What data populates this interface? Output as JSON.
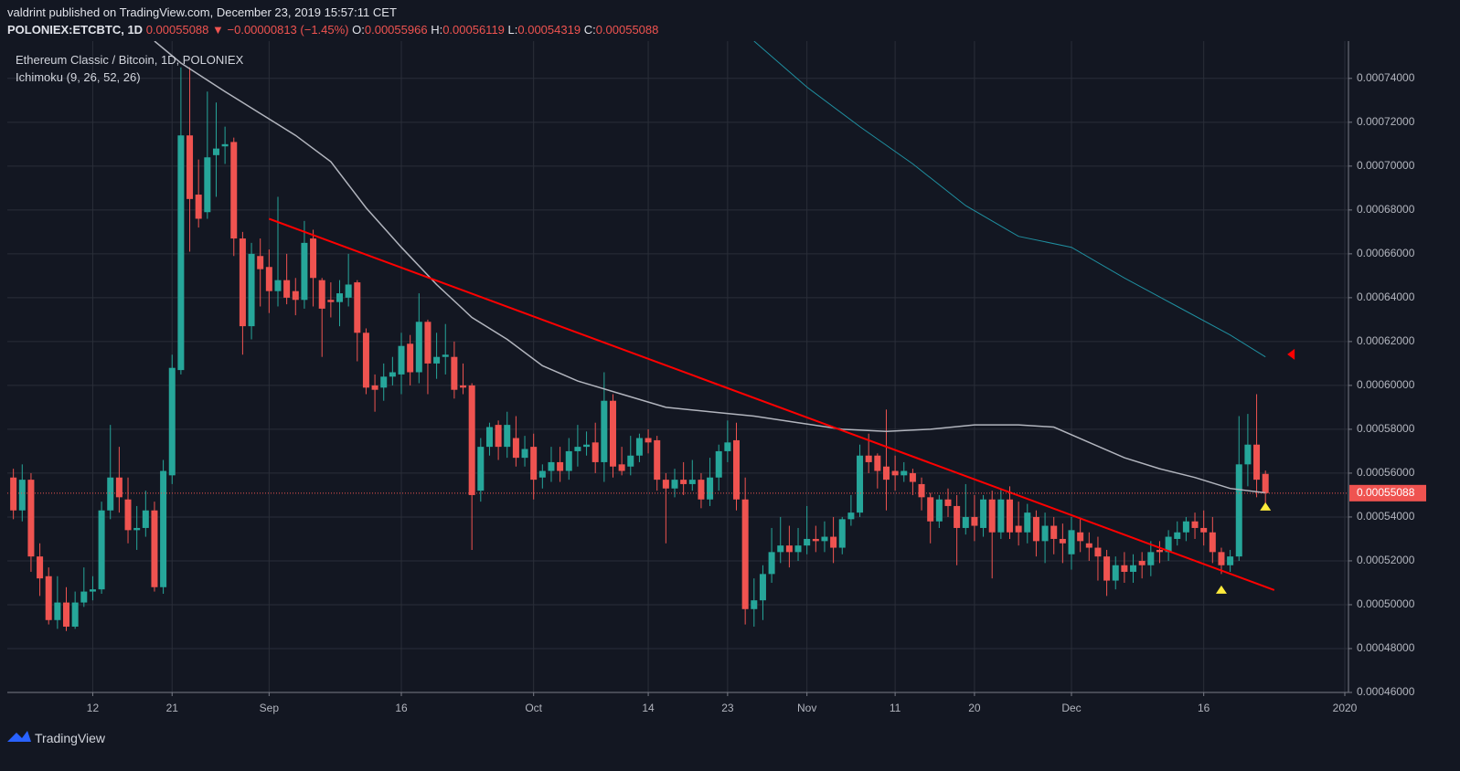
{
  "header": {
    "author_line": "valdrint published on TradingView.com, December 23, 2019 15:57:11 CET",
    "symbol": "POLONIEX:ETCBTC, 1D",
    "direction": "▼",
    "change": "−0.00000813 (−1.45%)",
    "labels": [
      "O:",
      "H:",
      "L:",
      "C:"
    ]
  },
  "chart_data": {
    "type": "candlestick",
    "title": "Ethereum Classic / Bitcoin, 1D, POLONIEX",
    "subtitle": "Ichimoku (9, 26, 52, 26)",
    "up_color": "#26a69a",
    "down_color": "#ef5350",
    "grid": true,
    "price_line": true,
    "x": [
      "2019-08-03",
      "2019-08-04",
      "2019-08-05",
      "2019-08-06",
      "2019-08-07",
      "2019-08-08",
      "2019-08-09",
      "2019-08-10",
      "2019-08-11",
      "2019-08-12",
      "2019-08-13",
      "2019-08-14",
      "2019-08-15",
      "2019-08-16",
      "2019-08-17",
      "2019-08-18",
      "2019-08-19",
      "2019-08-20",
      "2019-08-21",
      "2019-08-22",
      "2019-08-23",
      "2019-08-24",
      "2019-08-25",
      "2019-08-26",
      "2019-08-27",
      "2019-08-28",
      "2019-08-29",
      "2019-08-30",
      "2019-08-31",
      "2019-09-01",
      "2019-09-02",
      "2019-09-03",
      "2019-09-04",
      "2019-09-05",
      "2019-09-06",
      "2019-09-07",
      "2019-09-08",
      "2019-09-09",
      "2019-09-10",
      "2019-09-11",
      "2019-09-12",
      "2019-09-13",
      "2019-09-14",
      "2019-09-15",
      "2019-09-16",
      "2019-09-17",
      "2019-09-18",
      "2019-09-19",
      "2019-09-20",
      "2019-09-21",
      "2019-09-22",
      "2019-09-23",
      "2019-09-24",
      "2019-09-25",
      "2019-09-26",
      "2019-09-27",
      "2019-09-28",
      "2019-09-29",
      "2019-09-30",
      "2019-10-01",
      "2019-10-02",
      "2019-10-03",
      "2019-10-04",
      "2019-10-05",
      "2019-10-06",
      "2019-10-07",
      "2019-10-08",
      "2019-10-09",
      "2019-10-10",
      "2019-10-11",
      "2019-10-12",
      "2019-10-13",
      "2019-10-14",
      "2019-10-15",
      "2019-10-16",
      "2019-10-17",
      "2019-10-18",
      "2019-10-19",
      "2019-10-20",
      "2019-10-21",
      "2019-10-22",
      "2019-10-23",
      "2019-10-24",
      "2019-10-25",
      "2019-10-26",
      "2019-10-27",
      "2019-10-28",
      "2019-10-29",
      "2019-10-30",
      "2019-10-31",
      "2019-11-01",
      "2019-11-02",
      "2019-11-03",
      "2019-11-04",
      "2019-11-05",
      "2019-11-06",
      "2019-11-07",
      "2019-11-08",
      "2019-11-09",
      "2019-11-10",
      "2019-11-11",
      "2019-11-12",
      "2019-11-13",
      "2019-11-14",
      "2019-11-15",
      "2019-11-16",
      "2019-11-17",
      "2019-11-18",
      "2019-11-19",
      "2019-11-20",
      "2019-11-21",
      "2019-11-22",
      "2019-11-23",
      "2019-11-24",
      "2019-11-25",
      "2019-11-26",
      "2019-11-27",
      "2019-11-28",
      "2019-11-29",
      "2019-11-30",
      "2019-12-01",
      "2019-12-02",
      "2019-12-03",
      "2019-12-04",
      "2019-12-05",
      "2019-12-06",
      "2019-12-07",
      "2019-12-08",
      "2019-12-09",
      "2019-12-10",
      "2019-12-11",
      "2019-12-12",
      "2019-12-13",
      "2019-12-14",
      "2019-12-15",
      "2019-12-16",
      "2019-12-17",
      "2019-12-18",
      "2019-12-19",
      "2019-12-20",
      "2019-12-21",
      "2019-12-22",
      "2019-12-23"
    ],
    "open": [
      0.000558,
      0.000543,
      0.000557,
      0.000522,
      0.000513,
      0.000493,
      0.000501,
      0.00049,
      0.000501,
      0.000506,
      0.000507,
      0.000543,
      0.000558,
      0.000548,
      0.000534,
      0.000535,
      0.000543,
      0.000508,
      0.000559,
      0.000607,
      0.000714,
      0.000687,
      0.000679,
      0.000705,
      0.000709,
      0.000711,
      0.000667,
      0.000627,
      0.000659,
      0.000654,
      0.000643,
      0.000648,
      0.000643,
      0.000639,
      0.000667,
      0.000648,
      0.000639,
      0.000638,
      0.00064,
      0.000647,
      0.000624,
      0.0006,
      0.000599,
      0.000604,
      0.000605,
      0.000619,
      0.000606,
      0.000629,
      0.00061,
      0.000613,
      0.000613,
      0.0006,
      0.0006,
      0.000552,
      0.000572,
      0.000582,
      0.000572,
      0.000576,
      0.000567,
      0.000572,
      0.000558,
      0.000561,
      0.000565,
      0.000561,
      0.00057,
      0.000572,
      0.000574,
      0.000565,
      0.000593,
      0.000564,
      0.000563,
      0.000568,
      0.000576,
      0.000575,
      0.000557,
      0.000553,
      0.000557,
      0.000555,
      0.000557,
      0.000548,
      0.000558,
      0.00057,
      0.000575,
      0.000548,
      0.000498,
      0.000502,
      0.000514,
      0.000524,
      0.000527,
      0.000524,
      0.000527,
      0.00053,
      0.000529,
      0.000531,
      0.000526,
      0.000539,
      0.000542,
      0.000568,
      0.000568,
      0.000563,
      0.000561,
      0.000559,
      0.00056,
      0.000555,
      0.000549,
      0.000538,
      0.000548,
      0.000545,
      0.000535,
      0.00054,
      0.000535,
      0.000548,
      0.000533,
      0.000548,
      0.000536,
      0.000533,
      0.00054,
      0.000529,
      0.000536,
      0.00053,
      0.000523,
      0.000533,
      0.000528,
      0.000526,
      0.000522,
      0.000511,
      0.000518,
      0.000515,
      0.00052,
      0.000518,
      0.000525,
      0.000524,
      0.00053,
      0.000533,
      0.000538,
      0.000535,
      0.000533,
      0.000524,
      0.000518,
      0.000522,
      0.000564,
      0.000573,
      0.00055966
    ],
    "high": [
      0.000562,
      0.000564,
      0.00056,
      0.000528,
      0.000517,
      0.000513,
      0.000508,
      0.000506,
      0.000517,
      0.000513,
      0.000547,
      0.000582,
      0.000572,
      0.000558,
      0.000545,
      0.000552,
      0.000547,
      0.000566,
      0.000614,
      0.000745,
      0.000745,
      0.000703,
      0.000734,
      0.000729,
      0.000718,
      0.000713,
      0.00067,
      0.000665,
      0.000667,
      0.000662,
      0.000686,
      0.00066,
      0.000649,
      0.000675,
      0.000671,
      0.000649,
      0.000647,
      0.000648,
      0.00066,
      0.000648,
      0.000626,
      0.000605,
      0.00061,
      0.000613,
      0.000624,
      0.000623,
      0.000642,
      0.00063,
      0.000624,
      0.000628,
      0.00062,
      0.00061,
      0.000601,
      0.000576,
      0.000583,
      0.000584,
      0.000588,
      0.000586,
      0.000577,
      0.000578,
      0.000564,
      0.000572,
      0.000572,
      0.000576,
      0.000582,
      0.000579,
      0.000583,
      0.000606,
      0.000596,
      0.000572,
      0.000577,
      0.000578,
      0.00058,
      0.000577,
      0.00056,
      0.000562,
      0.000565,
      0.000566,
      0.00056,
      0.000567,
      0.000573,
      0.000584,
      0.000583,
      0.000558,
      0.000512,
      0.000518,
      0.000535,
      0.00054,
      0.000536,
      0.000535,
      0.000545,
      0.000536,
      0.000538,
      0.00054,
      0.00054,
      0.00055,
      0.000573,
      0.000578,
      0.000569,
      0.000589,
      0.000568,
      0.000565,
      0.000562,
      0.000558,
      0.000551,
      0.00055,
      0.000553,
      0.00055,
      0.000555,
      0.00055,
      0.00055,
      0.000552,
      0.000553,
      0.000554,
      0.000547,
      0.000546,
      0.000543,
      0.000542,
      0.00054,
      0.000537,
      0.00054,
      0.000539,
      0.000533,
      0.000531,
      0.000525,
      0.000522,
      0.000524,
      0.000523,
      0.000524,
      0.000529,
      0.000529,
      0.000534,
      0.000538,
      0.00054,
      0.000542,
      0.000543,
      0.00054,
      0.000526,
      0.000525,
      0.000586,
      0.000587,
      0.000596,
      0.00056119
    ],
    "low": [
      0.000539,
      0.000538,
      0.000515,
      0.000504,
      0.000491,
      0.000489,
      0.000488,
      0.000489,
      0.000499,
      0.000502,
      0.000505,
      0.000539,
      0.000542,
      0.000528,
      0.000525,
      0.000531,
      0.000506,
      0.000505,
      0.000555,
      0.000605,
      0.000661,
      0.000672,
      0.000676,
      0.000686,
      0.000701,
      0.000659,
      0.000614,
      0.000621,
      0.000636,
      0.000633,
      0.000636,
      0.000637,
      0.000632,
      0.000635,
      0.000636,
      0.000613,
      0.000631,
      0.000627,
      0.000636,
      0.000611,
      0.000596,
      0.000588,
      0.000593,
      0.0006,
      0.000596,
      0.0006,
      0.000601,
      0.000596,
      0.000603,
      0.000605,
      0.000594,
      0.000596,
      0.000525,
      0.000547,
      0.000568,
      0.000566,
      0.000567,
      0.000563,
      0.000563,
      0.000548,
      0.000553,
      0.000556,
      0.000556,
      0.000557,
      0.000563,
      0.000568,
      0.00056,
      0.000556,
      0.000558,
      0.000559,
      0.000559,
      0.000565,
      0.000569,
      0.000552,
      0.000528,
      0.000549,
      0.00055,
      0.000552,
      0.000544,
      0.000545,
      0.000552,
      0.000565,
      0.000543,
      0.000491,
      0.00049,
      0.000493,
      0.00051,
      0.000519,
      0.000517,
      0.00052,
      0.000523,
      0.000524,
      0.000524,
      0.000519,
      0.000523,
      0.000536,
      0.00054,
      0.00056,
      0.000553,
      0.000543,
      0.000552,
      0.000556,
      0.00055,
      0.000543,
      0.000528,
      0.000535,
      0.00054,
      0.000518,
      0.000532,
      0.000529,
      0.000531,
      0.000512,
      0.00053,
      0.00053,
      0.000527,
      0.000528,
      0.000522,
      0.000519,
      0.000523,
      0.000519,
      0.000516,
      0.000524,
      0.00052,
      0.000511,
      0.000504,
      0.000507,
      0.00051,
      0.00051,
      0.000512,
      0.000513,
      0.000519,
      0.00052,
      0.000527,
      0.000529,
      0.00053,
      0.000527,
      0.000519,
      0.000514,
      0.000515,
      0.00052,
      0.000554,
      0.000549,
      0.00054319
    ],
    "close": [
      0.000543,
      0.000557,
      0.000522,
      0.000512,
      0.000493,
      0.000501,
      0.00049,
      0.000501,
      0.000506,
      0.000507,
      0.000543,
      0.000558,
      0.000549,
      0.000534,
      0.000535,
      0.000543,
      0.000508,
      0.000561,
      0.000608,
      0.000714,
      0.000685,
      0.000676,
      0.000704,
      0.000708,
      0.00071,
      0.000667,
      0.000627,
      0.00066,
      0.000653,
      0.000643,
      0.000648,
      0.00064,
      0.000639,
      0.000665,
      0.000649,
      0.000635,
      0.000638,
      0.000642,
      0.000646,
      0.000624,
      0.000599,
      0.000598,
      0.000604,
      0.000606,
      0.000618,
      0.000606,
      0.000629,
      0.00061,
      0.000613,
      0.000614,
      0.000598,
      0.000599,
      0.00055,
      0.000572,
      0.000581,
      0.000572,
      0.000582,
      0.000567,
      0.000571,
      0.000557,
      0.000561,
      0.000565,
      0.000561,
      0.00057,
      0.000572,
      0.000573,
      0.000565,
      0.000593,
      0.000563,
      0.000561,
      0.000568,
      0.000576,
      0.000574,
      0.000557,
      0.000553,
      0.000557,
      0.000555,
      0.000557,
      0.000548,
      0.000558,
      0.00057,
      0.000574,
      0.000548,
      0.000498,
      0.000502,
      0.000514,
      0.000524,
      0.000527,
      0.000524,
      0.000527,
      0.00053,
      0.000529,
      0.000531,
      0.000526,
      0.000539,
      0.000542,
      0.000568,
      0.000565,
      0.000561,
      0.000557,
      0.000559,
      0.000561,
      0.000556,
      0.000549,
      0.000538,
      0.000548,
      0.000545,
      0.000535,
      0.00054,
      0.000536,
      0.000548,
      0.000533,
      0.000548,
      0.000533,
      0.000533,
      0.000542,
      0.000529,
      0.000536,
      0.00053,
      0.000528,
      0.000534,
      0.000529,
      0.000526,
      0.000522,
      0.000511,
      0.000518,
      0.000515,
      0.000518,
      0.000518,
      0.000524,
      0.000524,
      0.000531,
      0.000533,
      0.000538,
      0.000535,
      0.000533,
      0.000524,
      0.000518,
      0.000522,
      0.000564,
      0.000573,
      0.000557,
      0.00055088
    ],
    "xlim": [
      "2019-08-02",
      "2020-01-01"
    ],
    "xticks": [
      {
        "value": "2019-08-12",
        "label": "12"
      },
      {
        "value": "2019-08-21",
        "label": "21"
      },
      {
        "value": "2019-09-01",
        "label": "Sep"
      },
      {
        "value": "2019-09-16",
        "label": "16"
      },
      {
        "value": "2019-10-01",
        "label": "Oct"
      },
      {
        "value": "2019-10-14",
        "label": "14"
      },
      {
        "value": "2019-10-23",
        "label": "23"
      },
      {
        "value": "2019-11-01",
        "label": "Nov"
      },
      {
        "value": "2019-11-11",
        "label": "11"
      },
      {
        "value": "2019-11-20",
        "label": "20"
      },
      {
        "value": "2019-12-01",
        "label": "Dec"
      },
      {
        "value": "2019-12-16",
        "label": "16"
      },
      {
        "value": "2020-01-01",
        "label": "2020"
      }
    ],
    "ylim": [
      0.00046,
      0.000757
    ],
    "yticks": [
      {
        "value": 0.00046,
        "label": "0.00046000"
      },
      {
        "value": 0.00048,
        "label": "0.00048000"
      },
      {
        "value": 0.0005,
        "label": "0.00050000"
      },
      {
        "value": 0.00052,
        "label": "0.00052000"
      },
      {
        "value": 0.00054,
        "label": "0.00054000"
      },
      {
        "value": 0.00056,
        "label": "0.00056000"
      },
      {
        "value": 0.00058,
        "label": "0.00058000"
      },
      {
        "value": 0.0006,
        "label": "0.00060000"
      },
      {
        "value": 0.00062,
        "label": "0.00062000"
      },
      {
        "value": 0.00064,
        "label": "0.00064000"
      },
      {
        "value": 0.00066,
        "label": "0.00066000"
      },
      {
        "value": 0.00068,
        "label": "0.00068000"
      },
      {
        "value": 0.0007,
        "label": "0.00070000"
      },
      {
        "value": 0.00072,
        "label": "0.00072000"
      },
      {
        "value": 0.00074,
        "label": "0.00074000"
      }
    ],
    "lines": [
      {
        "color": "#b2b5be",
        "width": 1.5,
        "x": [
          "2019-08-19",
          "2019-08-22",
          "2019-08-27",
          "2019-08-31",
          "2019-09-04",
          "2019-09-08",
          "2019-09-12",
          "2019-09-16",
          "2019-09-20",
          "2019-09-24",
          "2019-09-28",
          "2019-10-02",
          "2019-10-06",
          "2019-10-11",
          "2019-10-16",
          "2019-10-21",
          "2019-10-26",
          "2019-10-31",
          "2019-11-05",
          "2019-11-10",
          "2019-11-15",
          "2019-11-20",
          "2019-11-25",
          "2019-11-29",
          "2019-12-03",
          "2019-12-07",
          "2019-12-11",
          "2019-12-15",
          "2019-12-19",
          "2019-12-23"
        ],
        "values": [
          0.000757,
          0.000747,
          0.000734,
          0.000724,
          0.000714,
          0.000702,
          0.000681,
          0.000663,
          0.000646,
          0.000631,
          0.000621,
          0.000609,
          0.000602,
          0.000596,
          0.00059,
          0.000588,
          0.000586,
          0.000583,
          0.00058,
          0.000579,
          0.00058,
          0.000582,
          0.000582,
          0.000581,
          0.000574,
          0.000567,
          0.000562,
          0.000558,
          0.000553,
          0.000551
        ]
      },
      {
        "color": "#1f8fa0",
        "width": 1,
        "x": [
          "2019-10-26",
          "2019-11-01",
          "2019-11-07",
          "2019-11-13",
          "2019-11-19",
          "2019-11-25",
          "2019-12-01",
          "2019-12-07",
          "2019-12-13",
          "2019-12-19",
          "2019-12-23"
        ],
        "values": [
          0.000757,
          0.000736,
          0.000718,
          0.000701,
          0.000682,
          0.000668,
          0.000663,
          0.000649,
          0.000636,
          0.000623,
          0.000613
        ]
      },
      {
        "color": "#ff0000",
        "width": 2,
        "x": [
          "2019-09-01",
          "2019-12-24"
        ],
        "values": [
          0.000676,
          0.0005067
        ]
      }
    ],
    "markers": [
      {
        "x": "2019-12-18",
        "value": 0.0005067,
        "color": "#ffeb3b",
        "shape": "triangle-up"
      },
      {
        "x": "2019-12-23",
        "value": 0.0005446,
        "color": "#ffeb3b",
        "shape": "triangle-up"
      },
      {
        "x": "2019-12-26",
        "value": 0.0006142,
        "color": "#ff0000",
        "shape": "triangle-left"
      }
    ]
  },
  "footer": {
    "brand": "TradingView"
  }
}
